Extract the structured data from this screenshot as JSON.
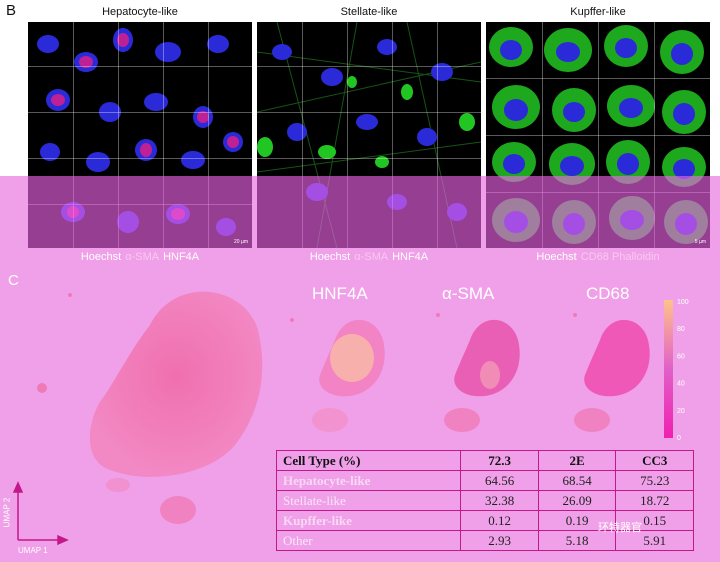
{
  "panel_b": {
    "letter": "B",
    "columns": [
      {
        "title": "Hepatocyte-like",
        "scale": "20 µm",
        "legend": [
          {
            "text": "Hoechst",
            "cls": "c-white"
          },
          {
            "text": "α-SMA",
            "cls": "c-faint"
          },
          {
            "text": "HNF4A",
            "cls": "c-white"
          }
        ]
      },
      {
        "title": "Stellate-like",
        "scale": "",
        "legend": [
          {
            "text": "Hoechst",
            "cls": "c-white"
          },
          {
            "text": "α-SMA",
            "cls": "c-faint"
          },
          {
            "text": "HNF4A",
            "cls": "c-white"
          }
        ]
      },
      {
        "title": "Kupffer-like",
        "scale": "5 µm",
        "legend": [
          {
            "text": "Hoechst",
            "cls": "c-white"
          },
          {
            "text": "CD68 Phalloidin",
            "cls": "c-faint"
          }
        ]
      }
    ]
  },
  "panel_c": {
    "letter": "C",
    "umap_titles": [
      "HNF4A",
      "α-SMA",
      "CD68"
    ],
    "colorbar_ticks": [
      "100",
      "80",
      "60",
      "40",
      "20",
      "0"
    ],
    "axis_y": "UMAP 2",
    "axis_x": "UMAP 1"
  },
  "table": {
    "headers": [
      "Cell Type (%)",
      "72.3",
      "2E",
      "CC3"
    ],
    "rows": [
      {
        "label": "Hepatocyte-like",
        "label_color": "#f8d8f4",
        "values": [
          "64.56",
          "68.54",
          "75.23"
        ]
      },
      {
        "label": "Stellate-like",
        "label_color": "#fbe4f8",
        "values": [
          "32.38",
          "26.09",
          "18.72"
        ]
      },
      {
        "label": "Kupffer-like",
        "label_color": "#f8d8f4",
        "values": [
          "0.12",
          "0.19",
          "0.15"
        ]
      },
      {
        "label": "Other",
        "label_color": "#fbe8f8",
        "values": [
          "2.93",
          "5.18",
          "5.91"
        ]
      }
    ]
  },
  "watermark": "环特器官"
}
